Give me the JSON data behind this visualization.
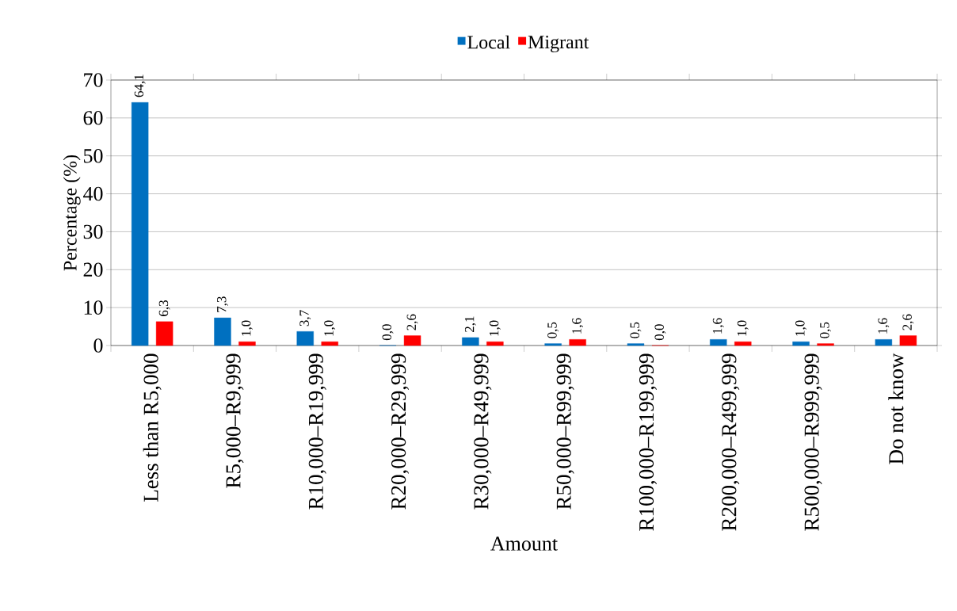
{
  "chart_data": {
    "type": "bar",
    "xlabel": "Amount",
    "ylabel": "Percentage (%)",
    "categories": [
      "Less than R5,000",
      "R5,000–R9,999",
      "R10,000–R19,999",
      "R20,000–R29,999",
      "R30,000–R49,999",
      "R50,000–R99,999",
      "R100,000–R199,999",
      "R200,000–R499,999",
      "R500,000–R999,999",
      "Do not know"
    ],
    "series": [
      {
        "name": "Local",
        "color": "#0070c0",
        "values": [
          64.1,
          7.3,
          3.7,
          0.0,
          2.1,
          0.5,
          0.5,
          1.6,
          1.0,
          1.6
        ],
        "value_labels": [
          "64,1",
          "7,3",
          "3,7",
          "0,0",
          "2,1",
          "0,5",
          "0,5",
          "1,6",
          "1,0",
          "1,6"
        ]
      },
      {
        "name": "Migrant",
        "color": "#ff0000",
        "values": [
          6.3,
          1.0,
          1.0,
          2.6,
          1.0,
          1.6,
          0.0,
          1.0,
          0.5,
          2.6
        ],
        "value_labels": [
          "6,3",
          "1,0",
          "1,0",
          "2,6",
          "1,0",
          "1,6",
          "0,0",
          "1,0",
          "0,5",
          "2,6"
        ]
      }
    ],
    "ylim": [
      0,
      70
    ],
    "yticks": [
      0,
      10,
      20,
      30,
      40,
      50,
      60,
      70
    ],
    "grid": "y",
    "legend": "top"
  }
}
